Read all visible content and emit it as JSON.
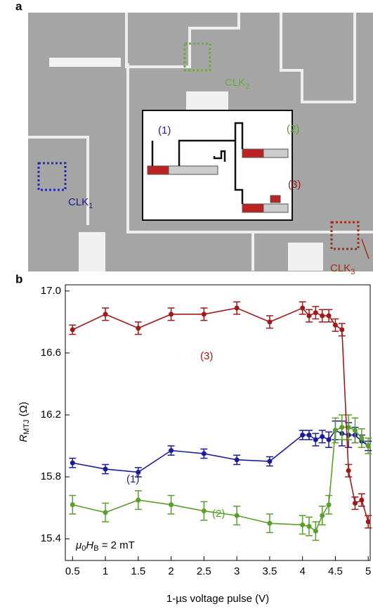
{
  "panel_a": {
    "label": "a",
    "clocks": [
      {
        "text": "CLK",
        "sub": "1"
      },
      {
        "text": "CLK",
        "sub": "2"
      },
      {
        "text": "CLK",
        "sub": "3"
      }
    ],
    "inset_labels": [
      "(1)",
      "(2)",
      "(3)"
    ]
  },
  "chart_data": {
    "type": "line",
    "panel_label": "b",
    "x_label": "1-µs voltage pulse (V)",
    "y_label": {
      "symbol": "R",
      "subscript": "MTJ",
      "unit": " (Ω)"
    },
    "annotation": {
      "mu": "μ",
      "mu_sub": "0",
      "symbol": "H",
      "sub": "B",
      "rest": " = 2 mT"
    },
    "x": [
      0.5,
      1,
      1.5,
      2,
      2.5,
      3,
      3.5,
      4,
      4.1,
      4.2,
      4.3,
      4.4,
      4.5,
      4.6,
      4.7,
      4.8,
      4.9,
      5
    ],
    "series": [
      {
        "name": "(1)",
        "color": "#1c1c96",
        "values": [
          15.89,
          15.85,
          15.83,
          15.97,
          15.95,
          15.91,
          15.9,
          16.07,
          16.07,
          16.04,
          16.06,
          16.04,
          16.1,
          16.08,
          16.07,
          16.07,
          16.03,
          16.0
        ],
        "errors": [
          0.03,
          0.03,
          0.03,
          0.03,
          0.03,
          0.03,
          0.03,
          0.03,
          0.03,
          0.04,
          0.04,
          0.05,
          0.06,
          0.08,
          0.08,
          0.05,
          0.04,
          0.03
        ]
      },
      {
        "name": "(2)",
        "color": "#5a9e2e",
        "values": [
          15.62,
          15.57,
          15.65,
          15.62,
          15.58,
          15.55,
          15.5,
          15.49,
          15.48,
          15.45,
          15.55,
          15.62,
          16.1,
          16.12,
          16.12,
          16.1,
          16.05,
          16.0
        ],
        "errors": [
          0.06,
          0.06,
          0.06,
          0.06,
          0.06,
          0.06,
          0.06,
          0.06,
          0.06,
          0.06,
          0.06,
          0.06,
          0.08,
          0.08,
          0.08,
          0.08,
          0.06,
          0.05
        ]
      },
      {
        "name": "(3)",
        "color": "#a01818",
        "values": [
          16.75,
          16.85,
          16.76,
          16.85,
          16.85,
          16.89,
          16.8,
          16.89,
          16.84,
          16.86,
          16.84,
          16.84,
          16.78,
          16.75,
          15.84,
          15.63,
          15.65,
          15.51
        ],
        "errors": [
          0.03,
          0.04,
          0.04,
          0.04,
          0.04,
          0.04,
          0.04,
          0.04,
          0.04,
          0.04,
          0.04,
          0.04,
          0.04,
          0.04,
          0.04,
          0.04,
          0.04,
          0.04
        ]
      }
    ],
    "xlim": [
      0.39,
      5.03
    ],
    "ylim": [
      15.26,
      17.04
    ],
    "xticks": [
      0.5,
      1,
      1.5,
      2,
      2.5,
      3,
      3.5,
      4,
      4.5,
      5
    ],
    "yticks": [
      15.4,
      15.8,
      16.2,
      16.6,
      {
        "value": 17,
        "label": "17.0"
      }
    ]
  }
}
